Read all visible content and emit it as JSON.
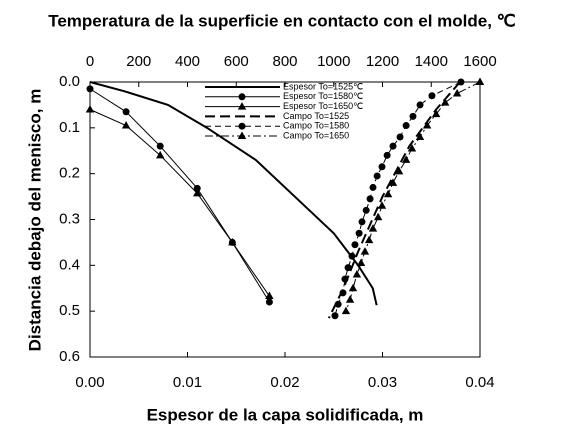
{
  "chart_data": {
    "type": "line",
    "title": "Temperatura de la superficie en contacto con el molde, ℃",
    "xlabel": "Espesor de la capa solidificada, m",
    "ylabel": "Distancia debajo del menisco, m",
    "xlim": [
      0,
      0.04
    ],
    "xticks": [
      {
        "value": 0,
        "label": "0.00"
      },
      0.01,
      0.02,
      0.03,
      0.04
    ],
    "x2lim": [
      0,
      1600
    ],
    "x2ticks": [
      0,
      200,
      400,
      600,
      800,
      1000,
      1200,
      1400,
      1600
    ],
    "ylim": [
      0,
      0.6
    ],
    "y_inverted": true,
    "yticks": [
      {
        "value": 0,
        "label": "0.0"
      },
      0.1,
      0.2,
      0.3,
      0.4,
      0.5,
      0.6
    ],
    "legend": "top",
    "series": [
      {
        "name": "Espesor To=1525℃",
        "color": "#000000",
        "dash": "solid",
        "x": [
          0,
          0.0035,
          0.008,
          0.012,
          0.017,
          0.021,
          0.025,
          0.0275,
          0.029,
          0.0294
        ],
        "values": [
          0,
          0.02,
          0.05,
          0.1,
          0.17,
          0.25,
          0.33,
          0.4,
          0.45,
          0.487
        ]
      },
      {
        "name": "Espesor To=1580℃",
        "color": "#000000",
        "dash": "solid",
        "marker": "circle",
        "x": [
          0,
          0.0037,
          0.0072,
          0.011,
          0.0146,
          0.0184
        ],
        "values": [
          0.015,
          0.065,
          0.14,
          0.232,
          0.35,
          0.48
        ]
      },
      {
        "name": "Espesor To=1650℃",
        "color": "#000000",
        "dash": "solid",
        "marker": "triangle",
        "x": [
          0,
          0.0037,
          0.0072,
          0.011,
          0.0146,
          0.0184
        ],
        "values": [
          0.06,
          0.095,
          0.16,
          0.243,
          0.35,
          0.467
        ]
      },
      {
        "name": "Campo To=1525",
        "color": "#000000",
        "dash": "long",
        "axis": "x2",
        "x": [
          1518,
          1420,
          1310,
          1200,
          1100,
          1040,
          980
        ],
        "values": [
          0,
          0.06,
          0.14,
          0.25,
          0.37,
          0.45,
          0.515
        ]
      },
      {
        "name": "Campo To=1580",
        "color": "#000000",
        "dash": "dashed",
        "marker": "circle",
        "axis": "x2",
        "x": [
          1522,
          1403,
          1354,
          1325,
          1297,
          1272,
          1243,
          1219,
          1198,
          1178,
          1161,
          1149,
          1133,
          1116,
          1104,
          1087,
          1075,
          1059,
          1046,
          1038,
          1018,
          1005
        ],
        "values": [
          0,
          0.03,
          0.05,
          0.075,
          0.095,
          0.12,
          0.14,
          0.16,
          0.185,
          0.205,
          0.23,
          0.255,
          0.28,
          0.305,
          0.33,
          0.355,
          0.38,
          0.405,
          0.43,
          0.46,
          0.485,
          0.51
        ]
      },
      {
        "name": "Campo To=1650",
        "color": "#000000",
        "dash": "dashdot",
        "marker": "triangle",
        "axis": "x2",
        "x": [
          1600,
          1506,
          1457,
          1420,
          1383,
          1354,
          1321,
          1297,
          1268,
          1243,
          1223,
          1198,
          1182,
          1161,
          1145,
          1128,
          1112,
          1095,
          1079,
          1067,
          1050
        ],
        "values": [
          0,
          0.025,
          0.045,
          0.07,
          0.095,
          0.12,
          0.145,
          0.17,
          0.195,
          0.22,
          0.245,
          0.27,
          0.295,
          0.32,
          0.345,
          0.37,
          0.395,
          0.42,
          0.45,
          0.475,
          0.5
        ]
      }
    ]
  }
}
